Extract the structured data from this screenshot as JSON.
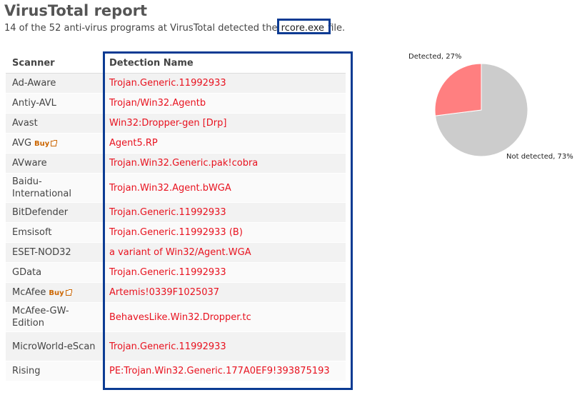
{
  "header": {
    "title": "VirusTotal report",
    "subtitle_prefix": "14 of the 52 anti-virus programs at VirusTotal detected the ",
    "file_name": "rcore.exe",
    "subtitle_suffix": " file."
  },
  "table": {
    "columns": [
      "Scanner",
      "Detection Name"
    ],
    "buy_label": "Buy",
    "rows": [
      {
        "scanner": "Ad-Aware",
        "detection": "Trojan.Generic.11992933"
      },
      {
        "scanner": "Antiy-AVL",
        "detection": "Trojan/Win32.Agentb"
      },
      {
        "scanner": "Avast",
        "detection": "Win32:Dropper-gen [Drp]"
      },
      {
        "scanner": "AVG",
        "detection": "Agent5.RP"
      },
      {
        "scanner": "AVware",
        "detection": "Trojan.Win32.Generic.pak!cobra"
      },
      {
        "scanner": "Baidu-International",
        "detection": "Trojan.Win32.Agent.bWGA"
      },
      {
        "scanner": "BitDefender",
        "detection": "Trojan.Generic.11992933"
      },
      {
        "scanner": "Emsisoft",
        "detection": "Trojan.Generic.11992933 (B)"
      },
      {
        "scanner": "ESET-NOD32",
        "detection": "a variant of Win32/Agent.WGA"
      },
      {
        "scanner": "GData",
        "detection": "Trojan.Generic.11992933"
      },
      {
        "scanner": "McAfee",
        "detection": "Artemis!0339F1025037"
      },
      {
        "scanner": "McAfee-GW-Edition",
        "detection": "BehavesLike.Win32.Dropper.tc"
      },
      {
        "scanner": "MicroWorld-eScan",
        "detection": "Trojan.Generic.11992933"
      },
      {
        "scanner": "Rising",
        "detection": "PE:Trojan.Win32.Generic.177A0EF9!393875193"
      }
    ]
  },
  "chart_data": {
    "type": "pie",
    "slices": [
      {
        "label": "Detected, 27%",
        "value": 27,
        "color": "#ff7f80"
      },
      {
        "label": "Not detected, 73%",
        "value": 73,
        "color": "#cccccc"
      }
    ]
  },
  "colors": {
    "highlight_border": "#0b3b93",
    "detection_text": "#e8121f",
    "buy_link": "#cc6600"
  }
}
